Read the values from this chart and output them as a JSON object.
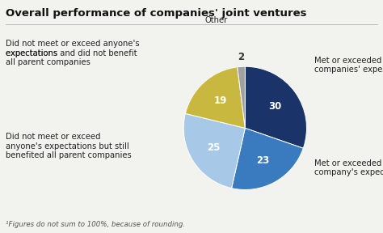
{
  "title": "Overall performance of companies' joint ventures",
  "footnote": "¹Figures do not sum to 100%, because of rounding.",
  "slices": [
    30,
    23,
    25,
    19,
    2
  ],
  "colors": [
    "#1a3368",
    "#3a7abf",
    "#a8c8e8",
    "#c9b840",
    "#a0a0a0"
  ],
  "startangle": 90,
  "background_color": "#f2f2ee",
  "title_fontsize": 9.5,
  "label_fontsize": 7.2,
  "inside_fontsize": 8.5
}
